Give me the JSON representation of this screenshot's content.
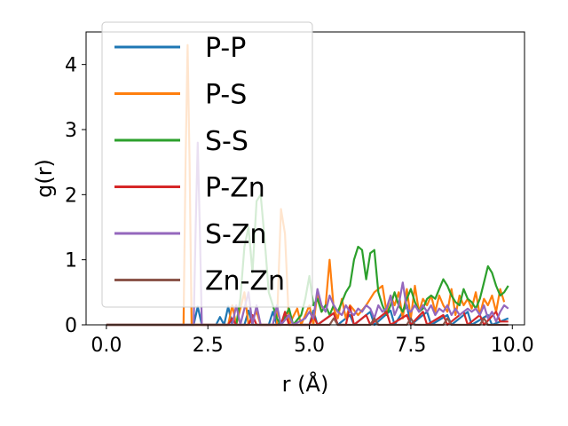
{
  "chart_data": {
    "type": "line",
    "title": "",
    "xlabel": "r (Å)",
    "ylabel": "g(r)",
    "xlim": [
      -0.5,
      10.3
    ],
    "ylim": [
      0,
      4.5
    ],
    "xticks": [
      "0.0",
      "2.5",
      "5.0",
      "7.5",
      "10.0"
    ],
    "xtick_values": [
      0,
      2.5,
      5,
      7.5,
      10
    ],
    "yticks": [
      "0",
      "1",
      "2",
      "3",
      "4"
    ],
    "ytick_values": [
      0,
      1,
      2,
      3,
      4
    ],
    "grid": false,
    "legend_position": "upper-left",
    "series": [
      {
        "name": "P-P",
        "color": "#1f77b4",
        "points": [
          [
            0,
            0
          ],
          [
            2.15,
            0
          ],
          [
            2.25,
            0.28
          ],
          [
            2.35,
            0
          ],
          [
            2.7,
            0
          ],
          [
            2.8,
            0.12
          ],
          [
            2.9,
            0
          ],
          [
            3.0,
            0.28
          ],
          [
            3.1,
            0
          ],
          [
            3.4,
            0
          ],
          [
            3.5,
            0.22
          ],
          [
            3.6,
            0
          ],
          [
            4.0,
            0
          ],
          [
            4.1,
            0.2
          ],
          [
            4.2,
            0
          ],
          [
            4.5,
            0.15
          ],
          [
            4.6,
            0
          ],
          [
            5.0,
            0
          ],
          [
            5.1,
            0.22
          ],
          [
            5.2,
            0
          ],
          [
            5.6,
            0.18
          ],
          [
            5.7,
            0
          ],
          [
            6.0,
            0.15
          ],
          [
            6.1,
            0
          ],
          [
            6.5,
            0.2
          ],
          [
            6.6,
            0
          ],
          [
            7.0,
            0.22
          ],
          [
            7.1,
            0
          ],
          [
            7.4,
            0.3
          ],
          [
            7.5,
            0
          ],
          [
            7.9,
            0.2
          ],
          [
            8.0,
            0
          ],
          [
            8.4,
            0.15
          ],
          [
            8.5,
            0
          ],
          [
            8.9,
            0.2
          ],
          [
            9.0,
            0
          ],
          [
            9.4,
            0.15
          ],
          [
            9.5,
            0
          ],
          [
            9.9,
            0.1
          ]
        ]
      },
      {
        "name": "P-S",
        "color": "#ff7f0e",
        "points": [
          [
            0,
            0
          ],
          [
            1.9,
            0
          ],
          [
            1.95,
            2.5
          ],
          [
            2.0,
            4.3
          ],
          [
            2.05,
            2.5
          ],
          [
            2.1,
            0
          ],
          [
            3.0,
            0
          ],
          [
            3.1,
            0.3
          ],
          [
            3.2,
            0
          ],
          [
            3.4,
            0.5
          ],
          [
            3.5,
            0
          ],
          [
            3.7,
            0.2
          ],
          [
            3.8,
            0
          ],
          [
            4.2,
            0
          ],
          [
            4.3,
            1.78
          ],
          [
            4.4,
            1.4
          ],
          [
            4.5,
            0
          ],
          [
            4.7,
            0.25
          ],
          [
            4.8,
            0
          ],
          [
            5.0,
            0.3
          ],
          [
            5.1,
            0
          ],
          [
            5.2,
            0.5
          ],
          [
            5.3,
            0.2
          ],
          [
            5.4,
            0.3
          ],
          [
            5.5,
            1.0
          ],
          [
            5.6,
            0.25
          ],
          [
            5.7,
            0.1
          ],
          [
            5.8,
            0.4
          ],
          [
            5.9,
            0.1
          ],
          [
            6.0,
            0.3
          ],
          [
            6.2,
            0.15
          ],
          [
            6.4,
            0.3
          ],
          [
            6.6,
            0.5
          ],
          [
            6.8,
            0.6
          ],
          [
            6.9,
            0.2
          ],
          [
            7.0,
            0.45
          ],
          [
            7.1,
            0.3
          ],
          [
            7.2,
            0.5
          ],
          [
            7.3,
            0.1
          ],
          [
            7.4,
            0.55
          ],
          [
            7.5,
            0.1
          ],
          [
            7.6,
            0.6
          ],
          [
            7.7,
            0.2
          ],
          [
            7.8,
            0.4
          ],
          [
            7.9,
            0.3
          ],
          [
            8.0,
            0.45
          ],
          [
            8.1,
            0.2
          ],
          [
            8.2,
            0.45
          ],
          [
            8.3,
            0.3
          ],
          [
            8.4,
            0.2
          ],
          [
            8.5,
            0.55
          ],
          [
            8.6,
            0.15
          ],
          [
            8.7,
            0.45
          ],
          [
            8.8,
            0.3
          ],
          [
            8.9,
            0.4
          ],
          [
            9.0,
            0.25
          ],
          [
            9.1,
            0.5
          ],
          [
            9.2,
            0.15
          ],
          [
            9.3,
            0.4
          ],
          [
            9.4,
            0.3
          ],
          [
            9.5,
            0.45
          ],
          [
            9.6,
            0.2
          ],
          [
            9.7,
            0.55
          ],
          [
            9.8,
            0.35
          ]
        ]
      },
      {
        "name": "S-S",
        "color": "#2ca02c",
        "points": [
          [
            0,
            0
          ],
          [
            3.2,
            0
          ],
          [
            3.3,
            0.4
          ],
          [
            3.4,
            1.2
          ],
          [
            3.5,
            1.5
          ],
          [
            3.6,
            0.8
          ],
          [
            3.7,
            1.9
          ],
          [
            3.8,
            2.0
          ],
          [
            3.9,
            1.3
          ],
          [
            4.0,
            0.5
          ],
          [
            4.1,
            0.3
          ],
          [
            4.2,
            0.1
          ],
          [
            4.3,
            0
          ],
          [
            4.5,
            0.25
          ],
          [
            4.6,
            0
          ],
          [
            4.8,
            0.15
          ],
          [
            4.9,
            0.4
          ],
          [
            5.0,
            0.75
          ],
          [
            5.1,
            0.3
          ],
          [
            5.2,
            0.4
          ],
          [
            5.3,
            0.2
          ],
          [
            5.4,
            0.3
          ],
          [
            5.5,
            0.15
          ],
          [
            5.6,
            0.3
          ],
          [
            5.7,
            0.2
          ],
          [
            5.8,
            0.35
          ],
          [
            5.9,
            0.5
          ],
          [
            6.0,
            0.6
          ],
          [
            6.1,
            1.0
          ],
          [
            6.2,
            1.2
          ],
          [
            6.3,
            1.15
          ],
          [
            6.4,
            0.7
          ],
          [
            6.5,
            1.1
          ],
          [
            6.6,
            1.15
          ],
          [
            6.7,
            0.5
          ],
          [
            6.8,
            0.3
          ],
          [
            6.9,
            0.15
          ],
          [
            7.0,
            0.3
          ],
          [
            7.1,
            0.5
          ],
          [
            7.2,
            0.3
          ],
          [
            7.3,
            0.2
          ],
          [
            7.4,
            0.4
          ],
          [
            7.5,
            0.55
          ],
          [
            7.6,
            0.35
          ],
          [
            7.7,
            0.2
          ],
          [
            7.8,
            0.25
          ],
          [
            7.9,
            0.4
          ],
          [
            8.0,
            0.45
          ],
          [
            8.1,
            0.4
          ],
          [
            8.2,
            0.55
          ],
          [
            8.3,
            0.7
          ],
          [
            8.4,
            0.6
          ],
          [
            8.5,
            0.45
          ],
          [
            8.6,
            0.35
          ],
          [
            8.7,
            0.3
          ],
          [
            8.8,
            0.55
          ],
          [
            8.9,
            0.4
          ],
          [
            9.0,
            0.35
          ],
          [
            9.1,
            0.25
          ],
          [
            9.2,
            0.4
          ],
          [
            9.3,
            0.65
          ],
          [
            9.4,
            0.9
          ],
          [
            9.5,
            0.8
          ],
          [
            9.6,
            0.6
          ],
          [
            9.7,
            0.45
          ],
          [
            9.8,
            0.5
          ],
          [
            9.9,
            0.6
          ]
        ]
      },
      {
        "name": "P-Zn",
        "color": "#d62728",
        "points": [
          [
            0,
            0
          ],
          [
            3.0,
            0
          ],
          [
            3.1,
            0.1
          ],
          [
            3.2,
            0
          ],
          [
            3.5,
            0
          ],
          [
            3.6,
            0.15
          ],
          [
            3.7,
            0
          ],
          [
            4.3,
            0
          ],
          [
            4.4,
            0.2
          ],
          [
            4.5,
            0
          ],
          [
            5.0,
            0
          ],
          [
            5.1,
            0.15
          ],
          [
            5.2,
            0
          ],
          [
            5.6,
            0.18
          ],
          [
            5.7,
            0
          ],
          [
            5.9,
            0
          ],
          [
            6.0,
            0.28
          ],
          [
            6.1,
            0
          ],
          [
            6.4,
            0.15
          ],
          [
            6.5,
            0
          ],
          [
            6.9,
            0.2
          ],
          [
            7.0,
            0
          ],
          [
            7.4,
            0.15
          ],
          [
            7.5,
            0
          ],
          [
            7.8,
            0.2
          ],
          [
            7.9,
            0
          ],
          [
            8.3,
            0.15
          ],
          [
            8.4,
            0
          ],
          [
            8.8,
            0.2
          ],
          [
            8.9,
            0
          ],
          [
            9.2,
            0.15
          ],
          [
            9.3,
            0
          ],
          [
            9.6,
            0.2
          ],
          [
            9.7,
            0.05
          ],
          [
            9.9,
            0.05
          ]
        ]
      },
      {
        "name": "S-Zn",
        "color": "#9467bd",
        "points": [
          [
            0,
            0
          ],
          [
            2.15,
            0
          ],
          [
            2.2,
            1.5
          ],
          [
            2.25,
            2.8
          ],
          [
            2.3,
            1.5
          ],
          [
            2.35,
            0
          ],
          [
            3.1,
            0
          ],
          [
            3.2,
            0.3
          ],
          [
            3.3,
            0
          ],
          [
            3.5,
            0.5
          ],
          [
            3.6,
            0
          ],
          [
            3.7,
            0.3
          ],
          [
            3.8,
            0
          ],
          [
            4.1,
            0
          ],
          [
            4.2,
            0.3
          ],
          [
            4.3,
            0
          ],
          [
            4.5,
            0.15
          ],
          [
            4.6,
            0
          ],
          [
            4.9,
            0.1
          ],
          [
            5.0,
            0.2
          ],
          [
            5.1,
            0.1
          ],
          [
            5.2,
            0.55
          ],
          [
            5.3,
            0.3
          ],
          [
            5.4,
            0.2
          ],
          [
            5.5,
            0.45
          ],
          [
            5.6,
            0.3
          ],
          [
            5.7,
            0.2
          ],
          [
            5.8,
            0.15
          ],
          [
            5.9,
            0.3
          ],
          [
            6.0,
            0.2
          ],
          [
            6.1,
            0.15
          ],
          [
            6.2,
            0.25
          ],
          [
            6.3,
            0.2
          ],
          [
            6.4,
            0.3
          ],
          [
            6.5,
            0.25
          ],
          [
            6.6,
            0.1
          ],
          [
            6.7,
            0.3
          ],
          [
            6.8,
            0.2
          ],
          [
            6.9,
            0.25
          ],
          [
            7.0,
            0.45
          ],
          [
            7.1,
            0.15
          ],
          [
            7.2,
            0.3
          ],
          [
            7.3,
            0.65
          ],
          [
            7.4,
            0.25
          ],
          [
            7.5,
            0.2
          ],
          [
            7.6,
            0.3
          ],
          [
            7.7,
            0.2
          ],
          [
            7.8,
            0.3
          ],
          [
            7.9,
            0.2
          ],
          [
            8.0,
            0.3
          ],
          [
            8.1,
            0.15
          ],
          [
            8.2,
            0.25
          ],
          [
            8.3,
            0.2
          ],
          [
            8.4,
            0.3
          ],
          [
            8.5,
            0.15
          ],
          [
            8.6,
            0.25
          ],
          [
            8.7,
            0.15
          ],
          [
            8.8,
            0.2
          ],
          [
            8.9,
            0.25
          ],
          [
            9.0,
            0.2
          ],
          [
            9.1,
            0.25
          ],
          [
            9.2,
            0.15
          ],
          [
            9.3,
            0.3
          ],
          [
            9.4,
            0.1
          ],
          [
            9.5,
            0.2
          ],
          [
            9.6,
            0.05
          ],
          [
            9.7,
            0.2
          ],
          [
            9.8,
            0.3
          ],
          [
            9.9,
            0.25
          ]
        ]
      },
      {
        "name": "Zn-Zn",
        "color": "#8c564b",
        "points": [
          [
            0,
            0
          ],
          [
            5.5,
            0
          ],
          [
            5.6,
            0.1
          ],
          [
            5.7,
            0
          ],
          [
            6.5,
            0
          ],
          [
            6.6,
            0.1
          ],
          [
            6.7,
            0
          ],
          [
            7.4,
            0
          ],
          [
            7.5,
            0.1
          ],
          [
            7.6,
            0
          ],
          [
            8.3,
            0
          ],
          [
            8.4,
            0.1
          ],
          [
            8.5,
            0
          ],
          [
            9.2,
            0
          ],
          [
            9.3,
            0.1
          ],
          [
            9.4,
            0
          ],
          [
            9.9,
            0
          ]
        ]
      }
    ]
  }
}
